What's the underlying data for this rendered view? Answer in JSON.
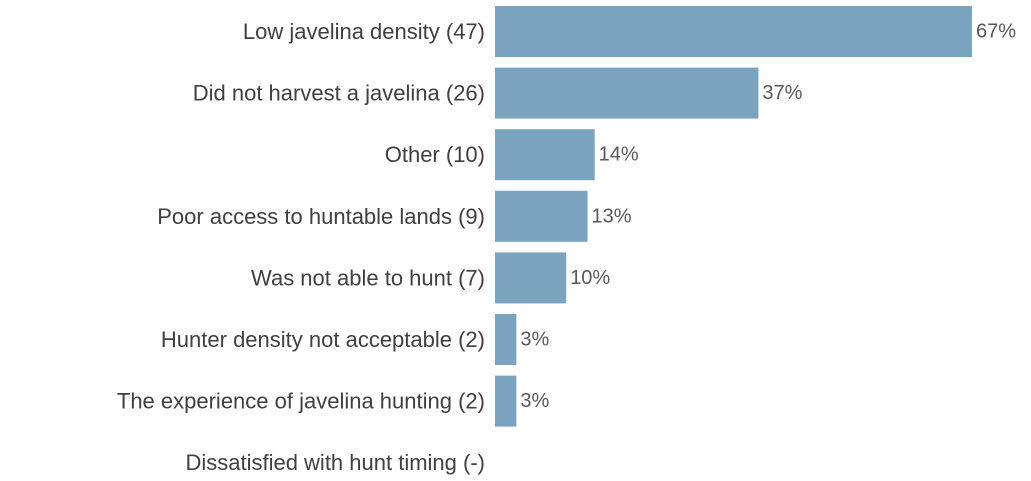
{
  "chart_data": {
    "type": "bar",
    "orientation": "horizontal",
    "title": "",
    "xlabel": "",
    "ylabel": "",
    "categories": [
      "Low javelina density (47)",
      "Did not harvest a javelina (26)",
      "Other (10)",
      "Poor access to huntable lands (9)",
      "Was not able to hunt (7)",
      "Hunter density not acceptable (2)",
      "The experience of javelina hunting (2)",
      "Dissatisfied with hunt timing (-)"
    ],
    "values": [
      67,
      37,
      14,
      13,
      10,
      3,
      3,
      null
    ],
    "value_labels": [
      "67%",
      "37%",
      "14%",
      "13%",
      "10%",
      "3%",
      "3%",
      ""
    ],
    "xlim": [
      0,
      67
    ],
    "grid": false,
    "legend": "none",
    "bar_color": "#7aa3c0"
  }
}
